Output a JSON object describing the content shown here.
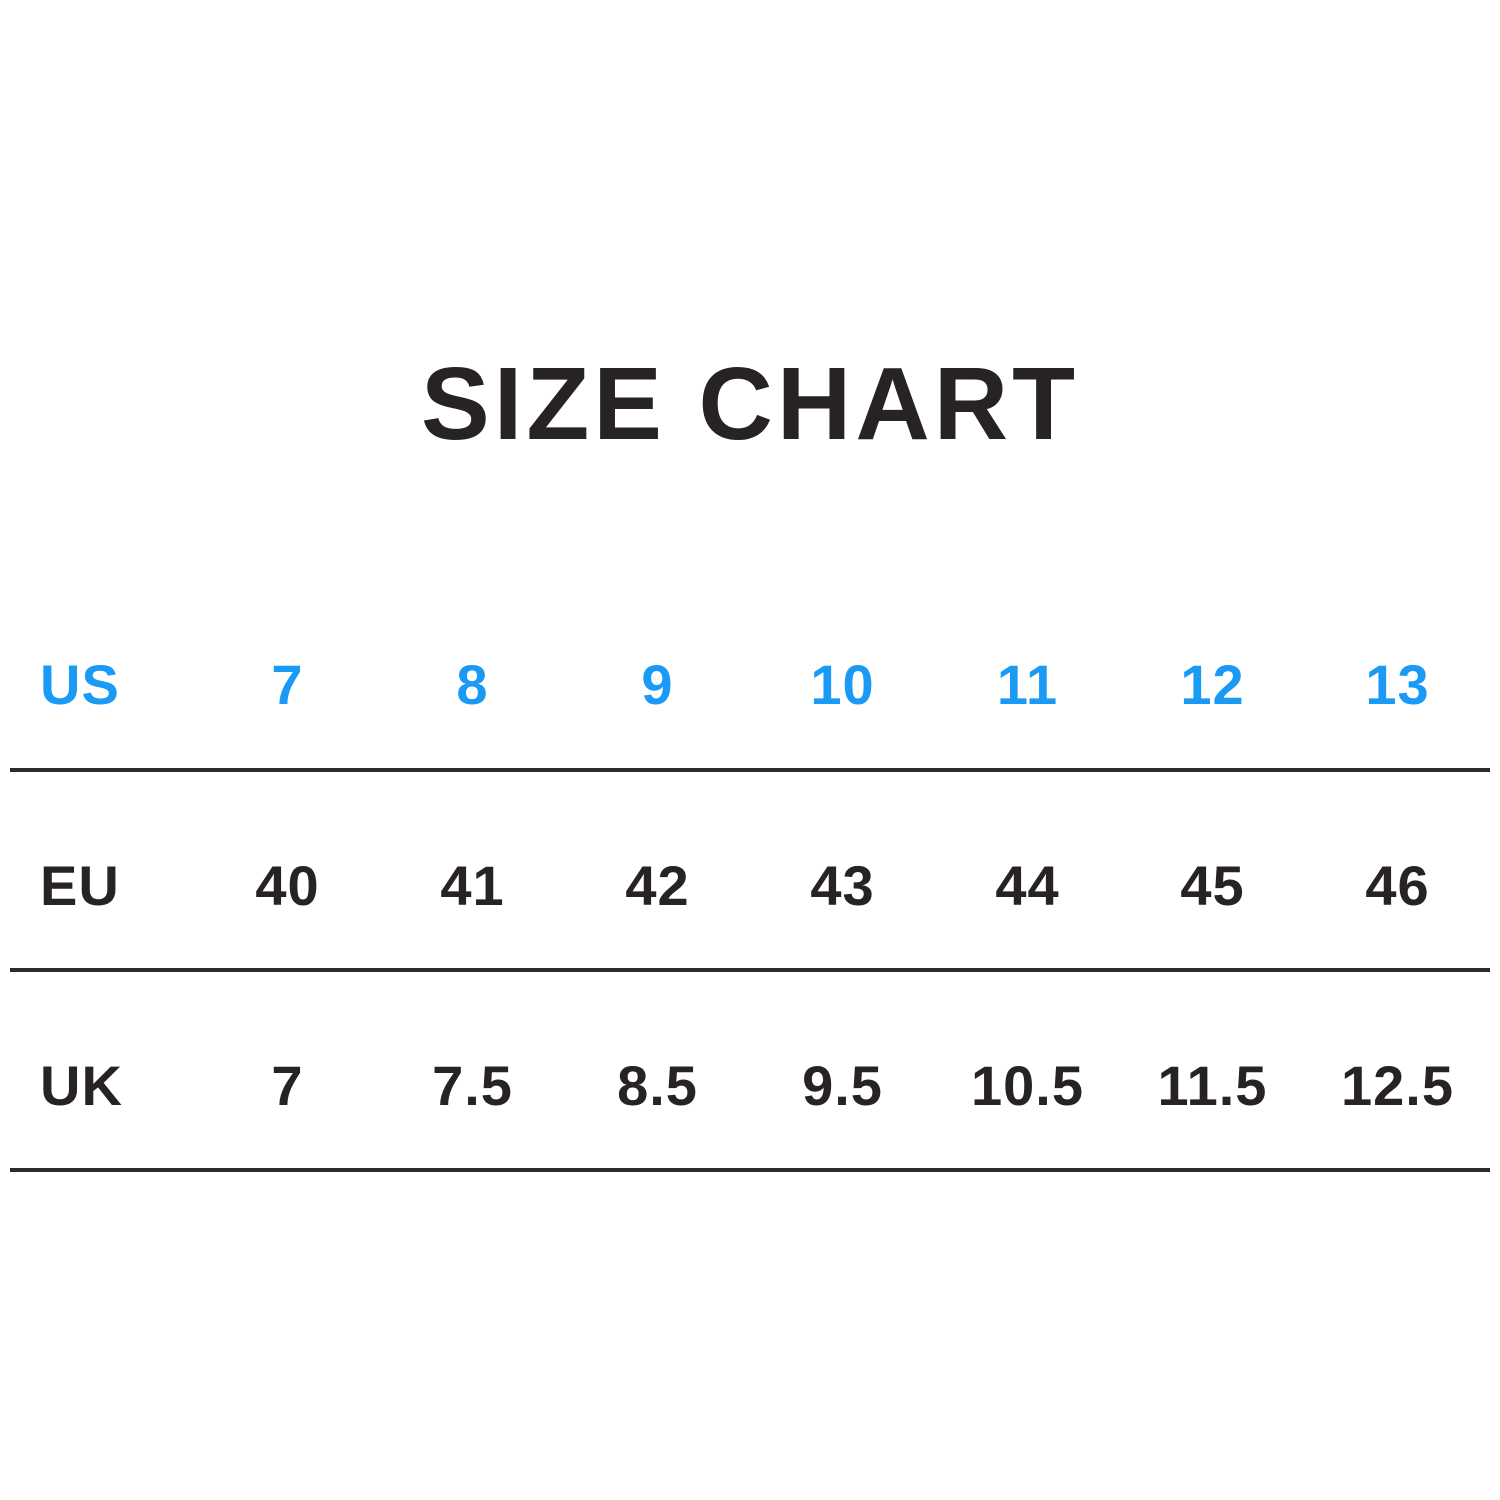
{
  "page": {
    "background": "#ffffff"
  },
  "colors": {
    "accent_blue": "#1b9af5",
    "ink": "#272223",
    "divider": "#2e2b2c"
  },
  "chart_data": {
    "type": "table",
    "title": "SIZE CHART",
    "header": [
      "US",
      "7",
      "8",
      "9",
      "10",
      "11",
      "12",
      "13"
    ],
    "rows": [
      [
        "EU",
        "40",
        "41",
        "42",
        "43",
        "44",
        "45",
        "46"
      ],
      [
        "UK",
        "7",
        "7.5",
        "8.5",
        "9.5",
        "10.5",
        "11.5",
        "12.5"
      ]
    ],
    "header_row_color": "#1b9af5",
    "body_row_color": "#272223",
    "grid": "horizontal-rules-only",
    "notes": "First column holds sizing-system labels; rules appear below each of the three rows."
  }
}
